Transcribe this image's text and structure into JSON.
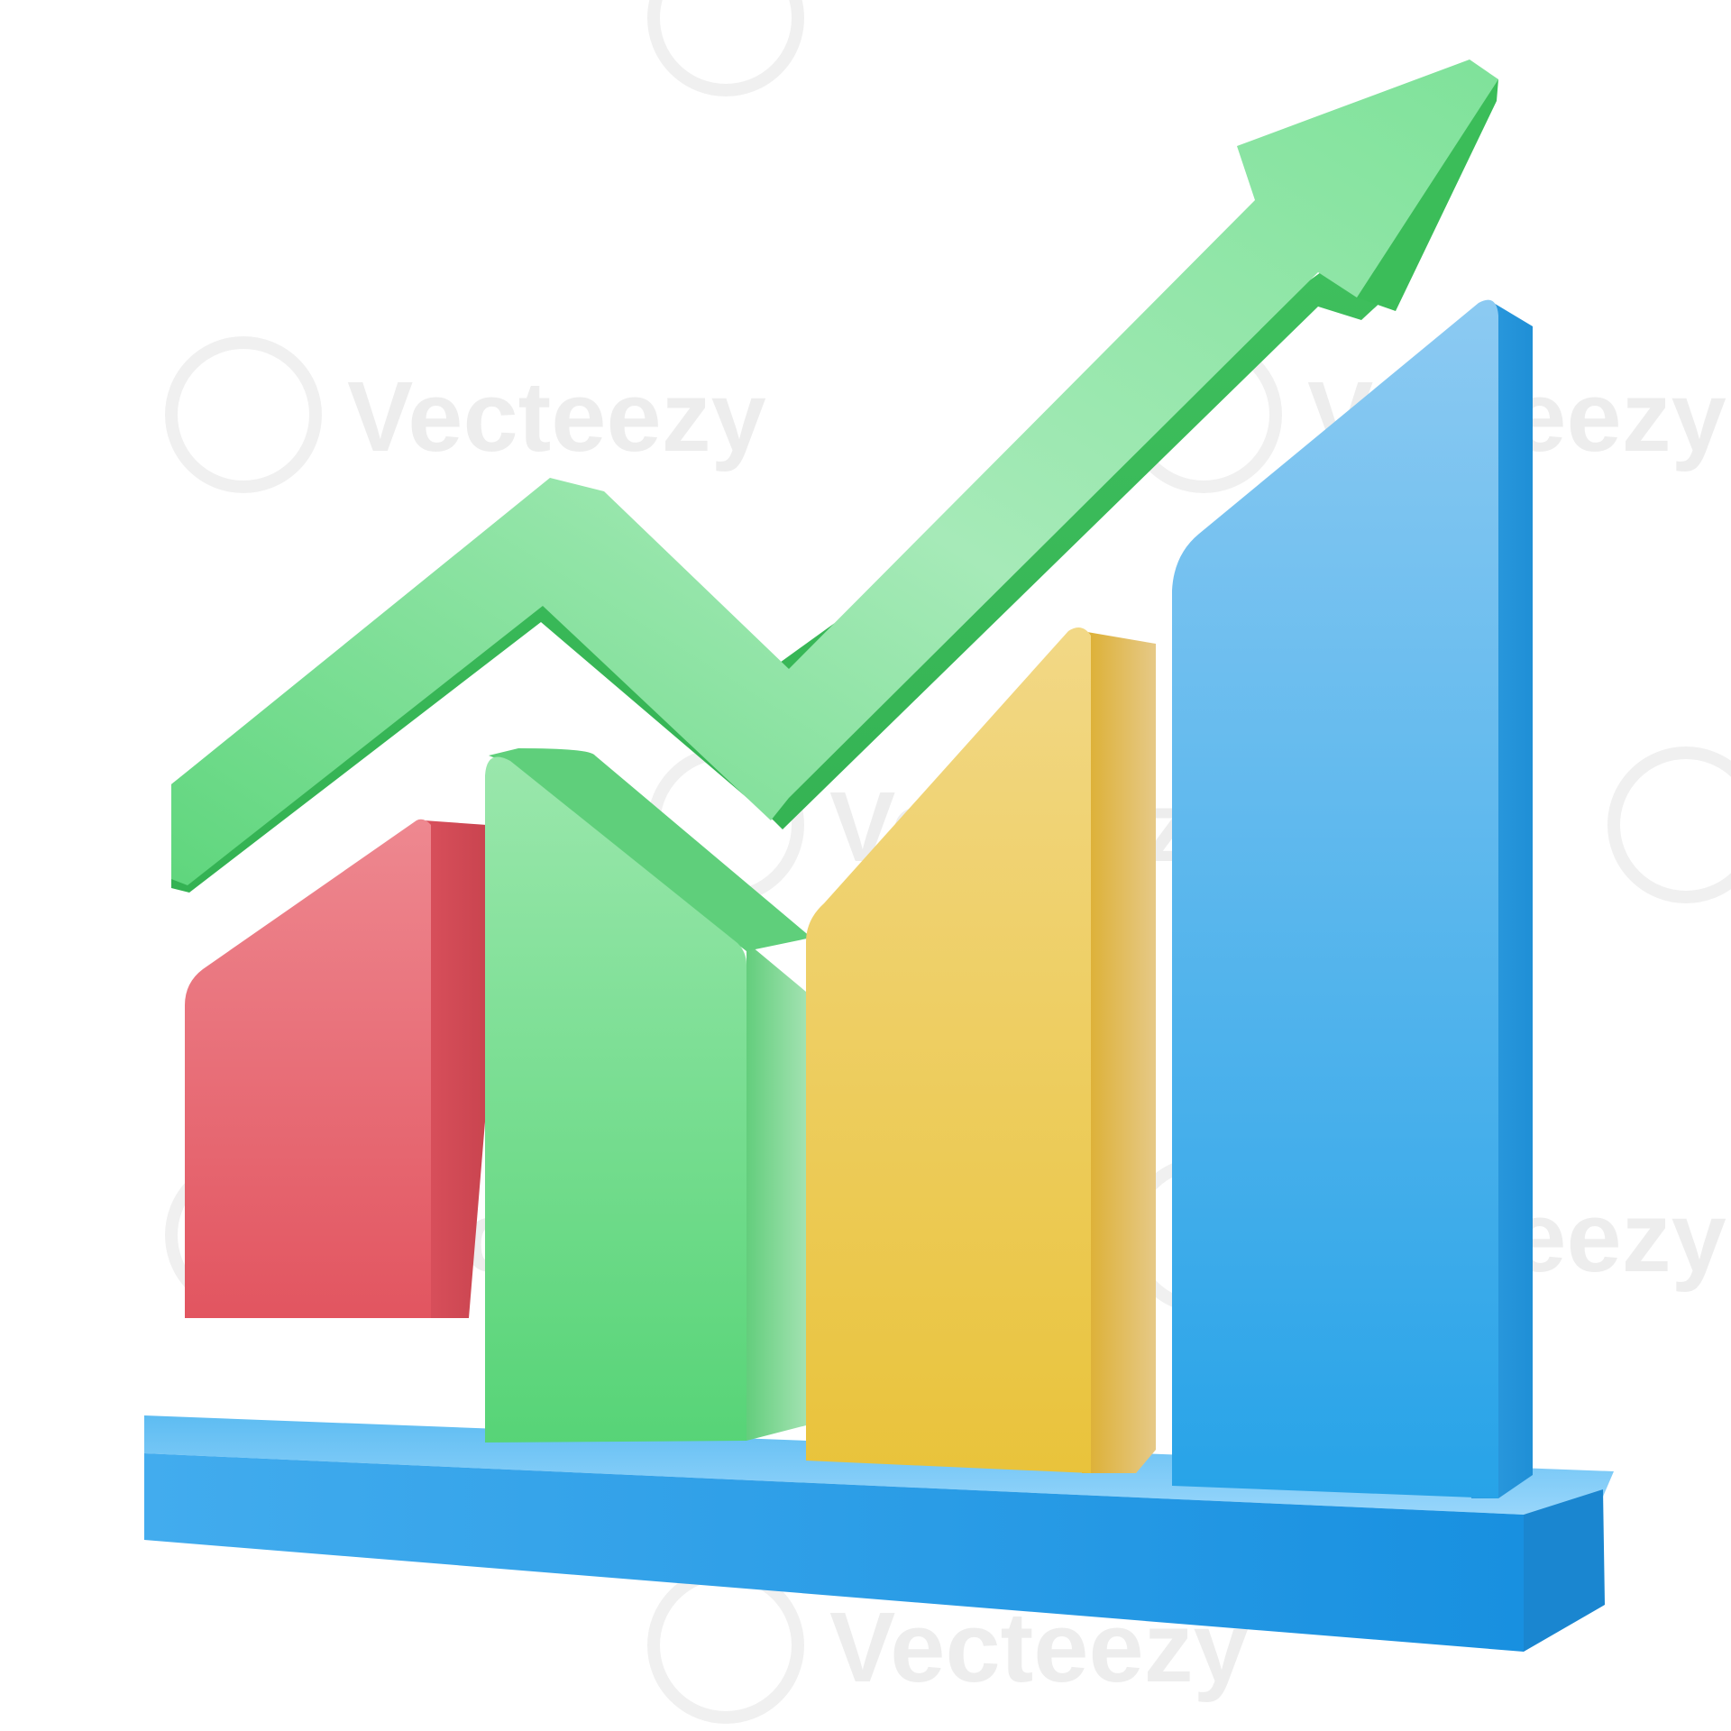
{
  "illustration": {
    "subject": "3d-growth-bar-chart-with-upward-arrow",
    "bars": [
      {
        "name": "red-bar",
        "color": "#e8646e",
        "level": 0.62
      },
      {
        "name": "green-bar",
        "color": "#6ed88a",
        "level": 0.76
      },
      {
        "name": "yellow-bar",
        "color": "#ecc84c",
        "level": 0.84
      },
      {
        "name": "blue-bar",
        "color": "#44aee8",
        "level": 1.0
      }
    ],
    "arrow": {
      "direction": "up-right",
      "color": "#6edc8c"
    },
    "base_color": "#3aa6ea"
  },
  "watermark": {
    "text": "Vecteezy",
    "icon": "vecteezy-logo-icon"
  }
}
